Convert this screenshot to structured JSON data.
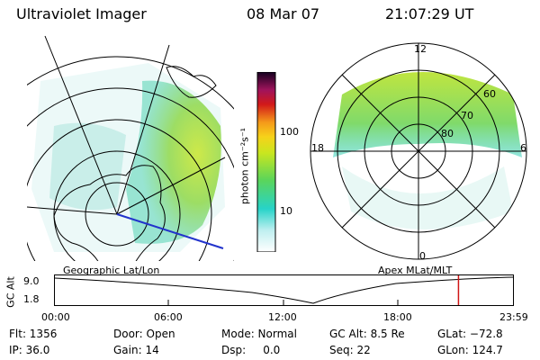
{
  "header": {
    "instrument": "Ultraviolet Imager",
    "date": "08 Mar 07",
    "time": "21:07:29 UT"
  },
  "panels": {
    "left_label": "Geographic Lat/Lon",
    "right_label": "Apex MLat/MLT"
  },
  "colorbar": {
    "label": "photon cm⁻²s⁻¹",
    "tick_100": "100",
    "tick_10": "10"
  },
  "polar": {
    "mlt_12": "12",
    "mlt_18": "18",
    "mlt_6": "6",
    "mlt_0": "0",
    "lat_60": "60",
    "lat_70": "70",
    "lat_80": "80"
  },
  "timeline": {
    "ylabel": "GC Alt",
    "y_top": "9.0",
    "y_bottom": "1.8",
    "ticks": [
      "00:00",
      "06:00",
      "12:00",
      "18:00",
      "23:59"
    ],
    "current_time_fraction": 0.881
  },
  "info": {
    "flt": "Flt: 1356",
    "ip": "IP: 36.0",
    "door": "Door: Open",
    "gain": "Gain: 14",
    "mode": "Mode: Normal",
    "dsp": "Dsp:     0.0",
    "gc_alt": "GC Alt: 8.5 Re",
    "seq": "Seq: 22",
    "glat": "GLat: −72.8",
    "glon": "GLon: 124.7"
  }
}
